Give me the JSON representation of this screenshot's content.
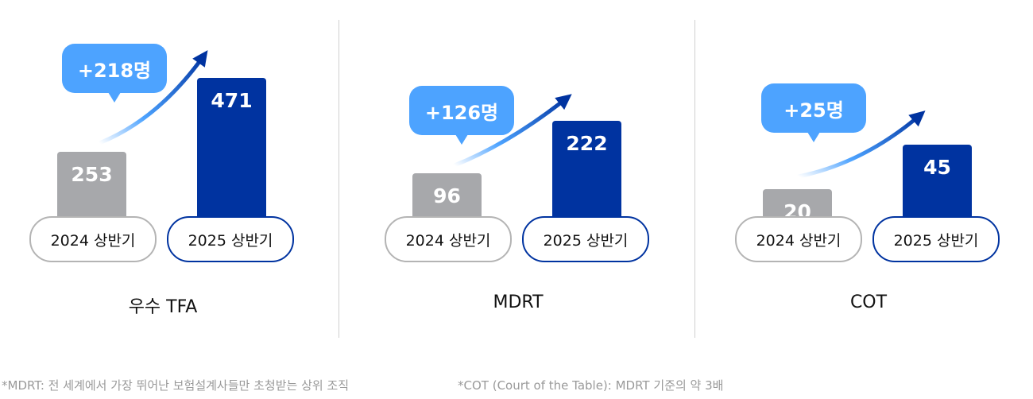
{
  "chart_data": [
    {
      "type": "bar",
      "title": "우수 TFA",
      "categories": [
        "2024 상반기",
        "2025 상반기"
      ],
      "values": [
        253,
        471
      ],
      "change_label": "+218명"
    },
    {
      "type": "bar",
      "title": "MDRT",
      "categories": [
        "2024 상반기",
        "2025 상반기"
      ],
      "values": [
        96,
        222
      ],
      "change_label": "+126명"
    },
    {
      "type": "bar",
      "title": "COT",
      "categories": [
        "2024 상반기",
        "2025 상반기"
      ],
      "values": [
        20,
        45
      ],
      "change_label": "+25명"
    }
  ],
  "colors": {
    "prev": "#a7a8ab",
    "current": "#0033a0",
    "bubble": "#4da3ff"
  },
  "footnotes": [
    "*MDRT: 전 세계에서 가장 뛰어난 보험설계사들만 초청받는 상위 조직",
    "*COT (Court of the Table): MDRT 기준의 약 3배"
  ]
}
